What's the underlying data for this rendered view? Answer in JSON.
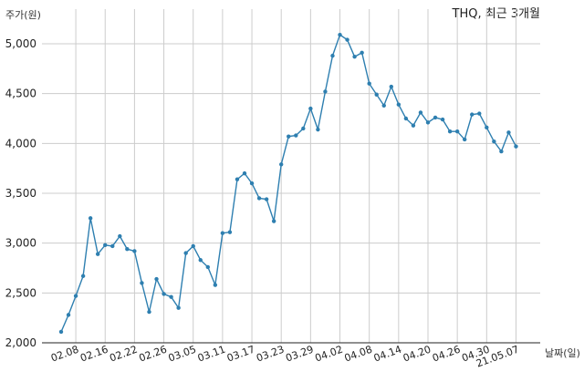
{
  "chart_data": {
    "type": "line",
    "title": "THQ, 최근 3개월",
    "ylabel": "주가(원)",
    "xlabel": "날짜(일)",
    "ylim": [
      2000,
      5150
    ],
    "yticks": [
      2000,
      2500,
      3000,
      3500,
      4000,
      4500,
      5000
    ],
    "ytick_labels": [
      "2,000",
      "2,500",
      "3,000",
      "3,500",
      "4,000",
      "4,500",
      "5,000"
    ],
    "grid": true,
    "line_color": "#2e7fb0",
    "xtick_labels": [
      "02.08",
      "02.16",
      "02.22",
      "02.26",
      "03.05",
      "03.11",
      "03.17",
      "03.23",
      "03.29",
      "04.02",
      "04.08",
      "04.14",
      "04.20",
      "04.26",
      "04.30",
      "21.05.07"
    ],
    "xtick_indices": [
      2,
      6,
      10,
      14,
      18,
      22,
      26,
      30,
      34,
      38,
      42,
      46,
      50,
      54,
      58,
      62
    ],
    "series": [
      {
        "values": [
          2110,
          2280,
          2470,
          2670,
          3250,
          2890,
          2980,
          2970,
          3070,
          2940,
          2920,
          2600,
          2310,
          2640,
          2490,
          2460,
          2350,
          2900,
          2970,
          2830,
          2760,
          2580,
          3100,
          3110,
          3640,
          3700,
          3600,
          3450,
          3440,
          3220,
          3790,
          4070,
          4080,
          4150,
          4350,
          4140,
          4520,
          4880,
          5090,
          5040,
          4870,
          4910,
          4600,
          4490,
          4380,
          4570,
          4390,
          4250,
          4180,
          4310,
          4210,
          4260,
          4240,
          4120,
          4120,
          4040,
          4290,
          4300,
          4160,
          4020,
          3920,
          4110,
          3970
        ]
      }
    ]
  }
}
